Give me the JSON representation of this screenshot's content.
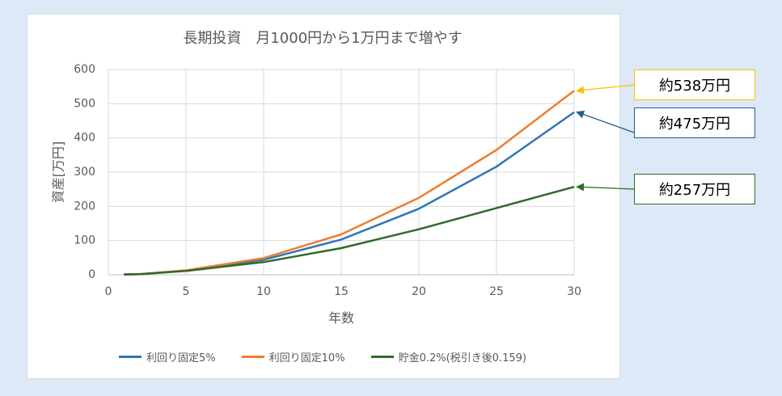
{
  "chart_data": {
    "type": "line",
    "title": "長期投資　月1000円から1万円まで増やす",
    "xlabel": "年数",
    "ylabel": "資産[万円]",
    "xlim": [
      0,
      30
    ],
    "ylim": [
      0,
      600
    ],
    "xticks": [
      0,
      5,
      10,
      15,
      20,
      25,
      30
    ],
    "yticks": [
      0,
      100,
      200,
      300,
      400,
      500,
      600
    ],
    "grid": true,
    "legend_position": "bottom",
    "series": [
      {
        "name": "利回り固定5%",
        "color": "#2e75b6",
        "x": [
          1,
          2,
          5,
          10,
          15,
          20,
          25,
          30
        ],
        "y": [
          1,
          2,
          12,
          44,
          103,
          193,
          316,
          475
        ]
      },
      {
        "name": "利回り固定10%",
        "color": "#ed7d31",
        "x": [
          1,
          2,
          5,
          10,
          15,
          20,
          25,
          30
        ],
        "y": [
          1,
          2,
          13,
          49,
          118,
          225,
          365,
          538
        ]
      },
      {
        "name": "貯金0.2%(税引き後0.159)",
        "color": "#2f6b2a",
        "x": [
          1,
          2,
          5,
          10,
          15,
          20,
          25,
          30
        ],
        "y": [
          1,
          2,
          11,
          37,
          78,
          133,
          195,
          257
        ]
      }
    ],
    "annotations": [
      {
        "text": "約538万円",
        "series": 1,
        "border": "#ffc000"
      },
      {
        "text": "約475万円",
        "series": 0,
        "border": "#1f5f8b"
      },
      {
        "text": "約257万円",
        "series": 2,
        "border": "#2f6b2a"
      }
    ]
  }
}
